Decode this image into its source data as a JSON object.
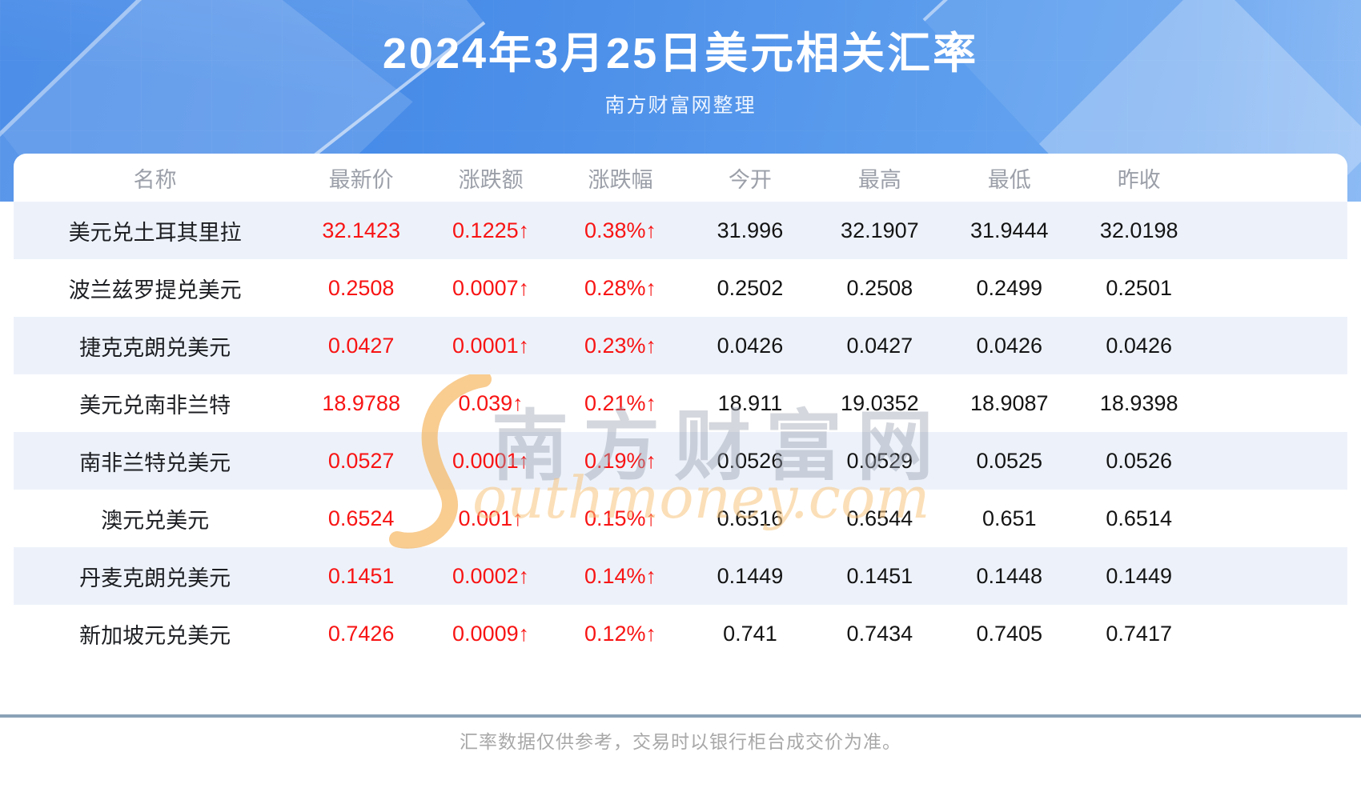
{
  "page": {
    "title": "2024年3月25日美元相关汇率",
    "subtitle": "南方财富网整理",
    "footer_note": "汇率数据仅供参考，交易时以银行柜台成交价为准。"
  },
  "watermark": {
    "cn": "南方财富网",
    "en": "outhmoney.com"
  },
  "colors": {
    "hero_blue": "#4b8fe9",
    "stripe_row": "#edf2fa",
    "value_up_red": "#f81414",
    "header_text_gray": "#9b9fa8",
    "divider_blue_gray": "#8aa2b6",
    "watermark_orange": "#f6b45c"
  },
  "chart_data": {
    "type": "table",
    "title": "2024年3月25日美元相关汇率",
    "subtitle": "南方财富网整理",
    "columns": [
      "名称",
      "最新价",
      "涨跌额",
      "涨跌幅",
      "今开",
      "最高",
      "最低",
      "昨收"
    ],
    "rows": [
      {
        "cells": [
          "美元兑土耳其里拉",
          "32.1423",
          "0.1225↑",
          "0.38%↑",
          "31.996",
          "32.1907",
          "31.9444",
          "32.0198"
        ]
      },
      {
        "cells": [
          "波兰兹罗提兑美元",
          "0.2508",
          "0.0007↑",
          "0.28%↑",
          "0.2502",
          "0.2508",
          "0.2499",
          "0.2501"
        ]
      },
      {
        "cells": [
          "捷克克朗兑美元",
          "0.0427",
          "0.0001↑",
          "0.23%↑",
          "0.0426",
          "0.0427",
          "0.0426",
          "0.0426"
        ]
      },
      {
        "cells": [
          "美元兑南非兰特",
          "18.9788",
          "0.039↑",
          "0.21%↑",
          "18.911",
          "19.0352",
          "18.9087",
          "18.9398"
        ]
      },
      {
        "cells": [
          "南非兰特兑美元",
          "0.0527",
          "0.0001↑",
          "0.19%↑",
          "0.0526",
          "0.0529",
          "0.0525",
          "0.0526"
        ]
      },
      {
        "cells": [
          "澳元兑美元",
          "0.6524",
          "0.001↑",
          "0.15%↑",
          "0.6516",
          "0.6544",
          "0.651",
          "0.6514"
        ]
      },
      {
        "cells": [
          "丹麦克朗兑美元",
          "0.1451",
          "0.0002↑",
          "0.14%↑",
          "0.1449",
          "0.1451",
          "0.1448",
          "0.1449"
        ]
      },
      {
        "cells": [
          "新加坡元兑美元",
          "0.7426",
          "0.0009↑",
          "0.12%↑",
          "0.741",
          "0.7434",
          "0.7405",
          "0.7417"
        ]
      }
    ],
    "footnote": "汇率数据仅供参考，交易时以银行柜台成交价为准。",
    "legend": "none",
    "grid": "row-stripes"
  }
}
